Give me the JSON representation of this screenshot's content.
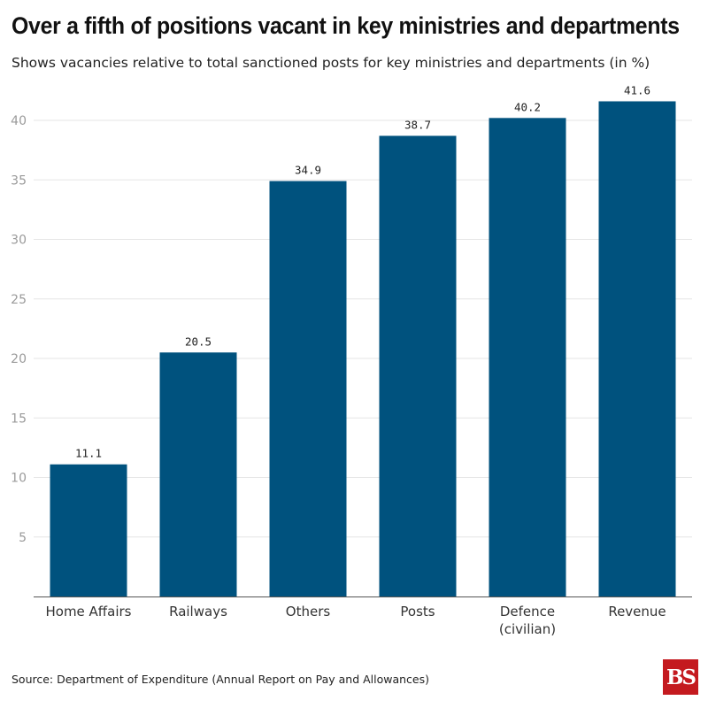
{
  "chart_data": {
    "type": "bar",
    "title": "Over a fifth of positions vacant in key ministries and departments",
    "subtitle": "Shows vacancies relative to total sanctioned posts for key ministries and departments (in %)",
    "categories": [
      [
        "Home Affairs"
      ],
      [
        "Railways"
      ],
      [
        "Others"
      ],
      [
        "Posts"
      ],
      [
        "Defence",
        "(civilian)"
      ],
      [
        "Revenue"
      ]
    ],
    "values": [
      11.1,
      20.5,
      34.9,
      38.7,
      40.2,
      41.6
    ],
    "value_labels": [
      "11.1",
      "20.5",
      "34.9",
      "38.7",
      "40.2",
      "41.6"
    ],
    "yticks": [
      5,
      10,
      15,
      20,
      25,
      30,
      35,
      40
    ],
    "ylim": [
      0,
      43
    ],
    "xlabel": "",
    "ylabel": "",
    "grid": true,
    "bar_color": "#00527e",
    "grid_color": "#e6e6e6",
    "axis_color": "#555555"
  },
  "footer": {
    "source": "Source: Department of Expenditure (Annual Report on Pay and Allowances)",
    "logo_text": "BS",
    "logo_color": "#c41a1f"
  }
}
